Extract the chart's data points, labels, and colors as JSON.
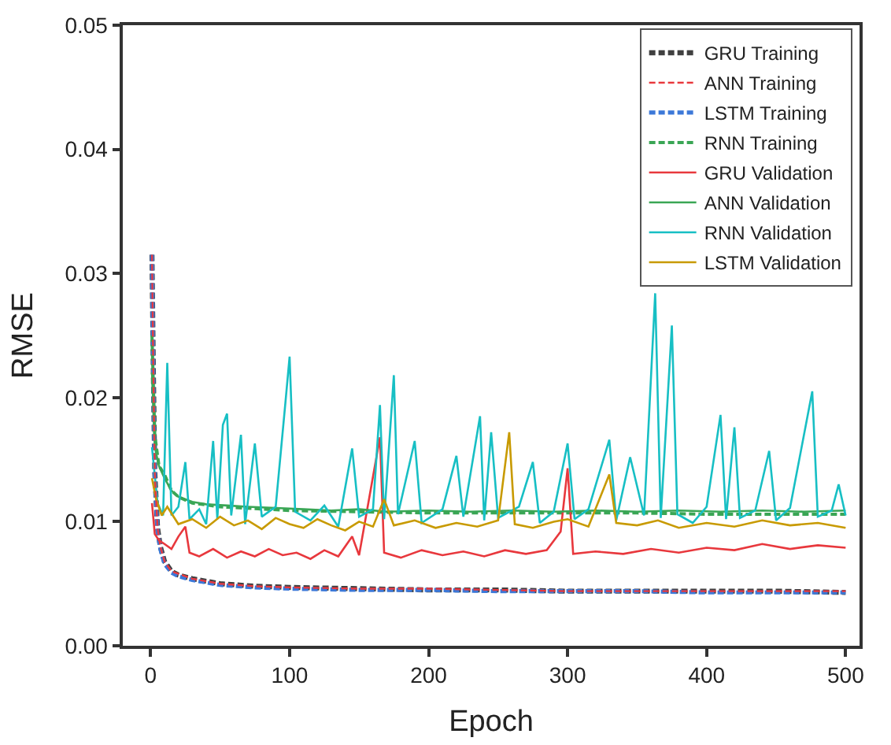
{
  "chart_data": {
    "type": "line",
    "xlabel": "Epoch",
    "ylabel": "RMSE",
    "xlim": [
      -20,
      510
    ],
    "ylim": [
      0,
      0.05
    ],
    "xticks": [
      0,
      100,
      200,
      300,
      400,
      500
    ],
    "yticks": [
      {
        "value": 0,
        "label": "0.00"
      },
      {
        "value": 0.01,
        "label": "0.01"
      },
      {
        "value": 0.02,
        "label": "0.02"
      },
      {
        "value": 0.03,
        "label": "0.03"
      },
      {
        "value": 0.04,
        "label": "0.04"
      },
      {
        "value": 0.05,
        "label": "0.05"
      }
    ],
    "legend": "top right",
    "series": [
      {
        "name": "GRU Training",
        "color": "#404040",
        "line_style": "dashed",
        "x": [
          1,
          2,
          3,
          5,
          7,
          10,
          15,
          20,
          30,
          50,
          75,
          100,
          150,
          200,
          250,
          300,
          350,
          400,
          450,
          500
        ],
        "values": [
          0.0315,
          0.022,
          0.014,
          0.0095,
          0.008,
          0.0068,
          0.006,
          0.0057,
          0.0054,
          0.005,
          0.0048,
          0.0047,
          0.0046,
          0.0045,
          0.0045,
          0.0044,
          0.0044,
          0.0044,
          0.0044,
          0.0043
        ]
      },
      {
        "name": "ANN Training",
        "color": "#e8383d",
        "line_style": "dashed",
        "x": [
          1,
          2,
          3,
          5,
          7,
          10,
          15,
          20,
          30,
          50,
          75,
          100,
          150,
          200,
          250,
          300,
          350,
          400,
          450,
          500
        ],
        "values": [
          0.0315,
          0.022,
          0.014,
          0.0095,
          0.008,
          0.0068,
          0.006,
          0.0058,
          0.0054,
          0.005,
          0.0048,
          0.0047,
          0.0046,
          0.0046,
          0.0045,
          0.0044,
          0.0044,
          0.0044,
          0.0044,
          0.0044
        ]
      },
      {
        "name": "LSTM Training",
        "color": "#3c78d8",
        "line_style": "dashed",
        "x": [
          1,
          2,
          3,
          5,
          7,
          10,
          15,
          20,
          30,
          50,
          75,
          100,
          150,
          200,
          250,
          300,
          350,
          400,
          450,
          500
        ],
        "values": [
          0.0315,
          0.021,
          0.0135,
          0.0092,
          0.0078,
          0.0066,
          0.0059,
          0.0056,
          0.0053,
          0.0049,
          0.0047,
          0.0046,
          0.0045,
          0.0045,
          0.0044,
          0.0044,
          0.0044,
          0.0043,
          0.0043,
          0.0043
        ]
      },
      {
        "name": "RNN Training",
        "color": "#3aa655",
        "line_style": "dashed",
        "x": [
          1,
          3,
          6,
          10,
          15,
          20,
          30,
          50,
          100,
          150,
          200,
          250,
          300,
          350,
          400,
          450,
          500
        ],
        "values": [
          0.025,
          0.017,
          0.0145,
          0.0138,
          0.0125,
          0.012,
          0.0115,
          0.0112,
          0.0109,
          0.0108,
          0.0107,
          0.0107,
          0.0107,
          0.0107,
          0.0106,
          0.0106,
          0.0106
        ]
      },
      {
        "name": "GRU Validation",
        "color": "#e8383d",
        "line_style": "solid",
        "x": [
          1,
          3,
          6,
          10,
          15,
          20,
          25,
          28,
          35,
          45,
          55,
          65,
          75,
          85,
          95,
          105,
          115,
          125,
          135,
          145,
          150,
          165,
          168,
          180,
          195,
          210,
          225,
          240,
          255,
          270,
          285,
          295,
          300,
          304,
          320,
          340,
          360,
          380,
          400,
          420,
          440,
          460,
          480,
          500
        ],
        "values": [
          0.0115,
          0.009,
          0.0085,
          0.0082,
          0.0078,
          0.0088,
          0.0096,
          0.0075,
          0.0072,
          0.0078,
          0.0071,
          0.0076,
          0.0072,
          0.0078,
          0.0073,
          0.0075,
          0.007,
          0.0077,
          0.0072,
          0.0088,
          0.0073,
          0.0168,
          0.0075,
          0.0071,
          0.0077,
          0.0073,
          0.0076,
          0.0072,
          0.0077,
          0.0074,
          0.0077,
          0.0092,
          0.0143,
          0.0074,
          0.0076,
          0.0074,
          0.0078,
          0.0075,
          0.0079,
          0.0077,
          0.0082,
          0.0078,
          0.0081,
          0.0079
        ]
      },
      {
        "name": "ANN Validation",
        "color": "#3aa655",
        "line_style": "solid",
        "x": [
          1,
          3,
          6,
          10,
          15,
          20,
          30,
          40,
          55,
          70,
          90,
          110,
          130,
          150,
          170,
          200,
          230,
          260,
          290,
          320,
          350,
          380,
          410,
          440,
          470,
          500
        ],
        "values": [
          0.022,
          0.016,
          0.0145,
          0.0135,
          0.0125,
          0.012,
          0.0116,
          0.0114,
          0.0113,
          0.0112,
          0.0111,
          0.011,
          0.0109,
          0.011,
          0.0108,
          0.0109,
          0.0108,
          0.0109,
          0.0108,
          0.0109,
          0.0108,
          0.0109,
          0.0108,
          0.0109,
          0.0108,
          0.0109
        ]
      },
      {
        "name": "RNN Validation",
        "color": "#17bfc4",
        "line_style": "solid",
        "x": [
          1,
          5,
          9,
          12,
          15,
          20,
          25,
          28,
          35,
          40,
          45,
          48,
          52,
          55,
          58,
          65,
          68,
          75,
          80,
          90,
          97,
          100,
          104,
          115,
          125,
          135,
          145,
          150,
          160,
          165,
          168,
          175,
          178,
          190,
          195,
          210,
          220,
          225,
          237,
          240,
          245,
          250,
          265,
          275,
          280,
          290,
          300,
          305,
          315,
          330,
          335,
          345,
          355,
          363,
          367,
          375,
          379,
          390,
          400,
          410,
          414,
          420,
          424,
          435,
          445,
          450,
          460,
          476,
          480,
          490,
          495,
          500
        ],
        "values": [
          0.016,
          0.0115,
          0.0105,
          0.0228,
          0.0105,
          0.0112,
          0.0148,
          0.0102,
          0.011,
          0.0098,
          0.0165,
          0.0102,
          0.0178,
          0.0187,
          0.0105,
          0.017,
          0.0098,
          0.0163,
          0.0104,
          0.0112,
          0.0196,
          0.0233,
          0.0108,
          0.0101,
          0.0113,
          0.0096,
          0.0159,
          0.0104,
          0.011,
          0.0194,
          0.0102,
          0.0218,
          0.0106,
          0.0165,
          0.0099,
          0.011,
          0.0153,
          0.0104,
          0.0185,
          0.0101,
          0.0172,
          0.0103,
          0.0112,
          0.0148,
          0.0099,
          0.0108,
          0.0163,
          0.0102,
          0.011,
          0.0166,
          0.0101,
          0.0152,
          0.0105,
          0.0284,
          0.0103,
          0.0258,
          0.0106,
          0.0099,
          0.0112,
          0.0186,
          0.0102,
          0.0176,
          0.0103,
          0.0109,
          0.0157,
          0.0101,
          0.0111,
          0.0205,
          0.0104,
          0.0109,
          0.013,
          0.0105
        ]
      },
      {
        "name": "LSTM Validation",
        "color": "#c89a00",
        "line_style": "solid",
        "x": [
          1,
          4,
          8,
          12,
          20,
          30,
          40,
          50,
          60,
          70,
          80,
          90,
          100,
          110,
          120,
          130,
          140,
          150,
          160,
          168,
          175,
          190,
          205,
          220,
          235,
          250,
          258,
          262,
          275,
          290,
          300,
          315,
          330,
          335,
          350,
          365,
          380,
          400,
          420,
          440,
          460,
          480,
          500
        ],
        "values": [
          0.0135,
          0.0118,
          0.0105,
          0.0112,
          0.0098,
          0.0102,
          0.0095,
          0.0104,
          0.0097,
          0.0101,
          0.0094,
          0.0103,
          0.0098,
          0.0095,
          0.0102,
          0.0097,
          0.0093,
          0.01,
          0.0096,
          0.0118,
          0.0097,
          0.0101,
          0.0095,
          0.0099,
          0.0096,
          0.0101,
          0.0172,
          0.0098,
          0.0095,
          0.01,
          0.0102,
          0.0096,
          0.0138,
          0.0099,
          0.0097,
          0.0101,
          0.0095,
          0.0099,
          0.0096,
          0.0101,
          0.0097,
          0.0099,
          0.0095
        ]
      }
    ]
  }
}
